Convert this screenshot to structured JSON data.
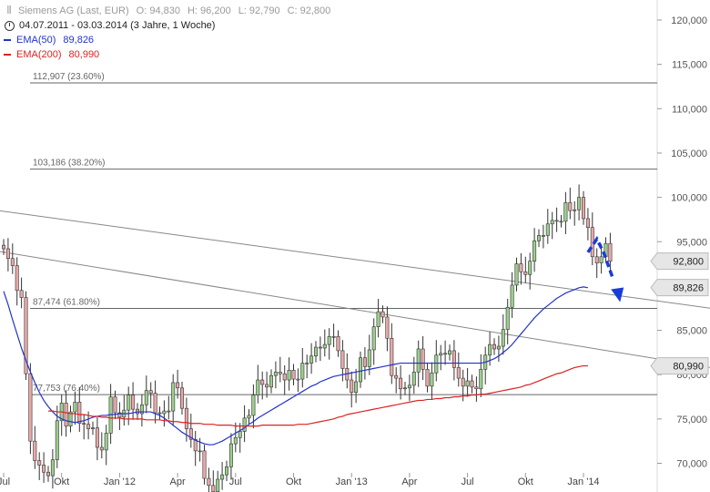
{
  "header": {
    "instrument": "Siemens AG (Last, EUR)",
    "open": "O: 94,830",
    "high": "H: 96,200",
    "low": "L: 92,790",
    "close": "C: 92,800",
    "period": "04.07.2011 - 03.03.2014 (3 Jahre, 1 Woche)"
  },
  "icons": {
    "instrument": "candlestick-icon",
    "period": "clock-icon"
  },
  "legend": [
    {
      "name": "EMA(50)",
      "value": "89,826",
      "color": "#2233cc"
    },
    {
      "name": "EMA(200)",
      "value": "80,990",
      "color": "#dd2222"
    }
  ],
  "chart_data": {
    "type": "candlestick",
    "ylim": [
      67.5,
      122.5
    ],
    "y_ticks": [
      70,
      75,
      80,
      85,
      90,
      95,
      100,
      105,
      110,
      115,
      120
    ],
    "y_tick_labels": [
      "70,000",
      "75,000",
      "80,000",
      "85,000",
      "90,000",
      "95,000",
      "100,000",
      "105,000",
      "110,000",
      "115,000",
      "120,000"
    ],
    "x_tick_labels": [
      "Jul",
      "Okt",
      "Jan '12",
      "Apr",
      "Jul",
      "Okt",
      "Jan '13",
      "Apr",
      "Jul",
      "Okt",
      "Jan '14"
    ],
    "x_tick_index": [
      0,
      13,
      26,
      39,
      52,
      65,
      78,
      91,
      104,
      117,
      130
    ],
    "fib_levels": [
      {
        "value": 112.907,
        "label": "112,907 (23.60%)"
      },
      {
        "value": 103.186,
        "label": "103,186 (38.20%)"
      },
      {
        "value": 87.474,
        "label": "87,474 (61.80%)"
      },
      {
        "value": 77.753,
        "label": "77,753 (76.40%)"
      }
    ],
    "trendlines": [
      {
        "from": [
          -1,
          98.5
        ],
        "to": [
          167,
          86.9
        ]
      },
      {
        "from": [
          -1,
          93.9
        ],
        "to": [
          167,
          80.1
        ]
      }
    ],
    "close": [
      94.2,
      93.1,
      92.3,
      89.5,
      88.7,
      80.1,
      72.5,
      70.3,
      69.8,
      69.0,
      68.6,
      70.4,
      74.8,
      76.8,
      74.2,
      75.8,
      76.9,
      74.5,
      74.4,
      73.9,
      74.0,
      71.8,
      71.5,
      73.4,
      77.5,
      75.7,
      75.2,
      76.0,
      77.7,
      76.1,
      75.6,
      76.6,
      78.2,
      77.9,
      75.7,
      75.6,
      75.9,
      75.9,
      79.1,
      78.5,
      76.2,
      73.9,
      72.7,
      71.4,
      71.4,
      68.3,
      67.5,
      66.8,
      68.2,
      68.7,
      69.6,
      72.2,
      72.9,
      73.6,
      75.1,
      75.4,
      77.7,
      79.4,
      78.9,
      78.6,
      79.9,
      80.3,
      80.1,
      79.4,
      80.5,
      79.5,
      79.5,
      81.3,
      81.3,
      82.1,
      83.1,
      83.0,
      83.4,
      84.3,
      84.3,
      82.7,
      80.7,
      79.4,
      78.0,
      79.2,
      81.9,
      80.9,
      82.8,
      85.4,
      87.1,
      86.5,
      84.1,
      79.9,
      79.6,
      78.4,
      78.5,
      78.8,
      80.3,
      82.9,
      80.6,
      78.7,
      80.2,
      82.2,
      82.4,
      82.3,
      82.7,
      80.8,
      79.6,
      78.7,
      79.3,
      78.6,
      78.4,
      80.6,
      82.2,
      83.4,
      82.9,
      83.2,
      85.1,
      87.6,
      90.1,
      92.5,
      91.6,
      91.3,
      92.8,
      95.1,
      95.7,
      95.7,
      97.0,
      97.4,
      97.3,
      97.3,
      99.4,
      98.5,
      98.6,
      100.0,
      97.6,
      96.6,
      93.3,
      92.6,
      93.3,
      94.8,
      92.8
    ],
    "ema50": [
      89.4,
      87.9,
      86.2,
      84.6,
      83.0,
      81.6,
      80.3,
      79.1,
      78.0,
      77.1,
      76.4,
      75.8,
      75.3,
      75.0,
      74.8,
      74.7,
      74.6,
      74.7,
      74.8,
      75.0,
      75.2,
      75.3,
      75.4,
      75.4,
      75.5,
      75.5,
      75.6,
      75.6,
      75.6,
      75.7,
      75.8,
      75.8,
      75.8,
      75.8,
      75.6,
      75.4,
      75.1,
      74.7,
      74.3,
      73.9,
      73.5,
      73.2,
      72.9,
      72.6,
      72.4,
      72.2,
      72.1,
      72.1,
      72.3,
      72.5,
      72.8,
      73.1,
      73.4,
      73.7,
      74.0,
      74.4,
      74.7,
      75.1,
      75.4,
      75.7,
      76.0,
      76.3,
      76.6,
      76.9,
      77.2,
      77.5,
      77.8,
      78.1,
      78.4,
      78.7,
      78.9,
      79.2,
      79.4,
      79.6,
      79.8,
      79.9,
      80.0,
      80.1,
      80.2,
      80.3,
      80.4,
      80.5,
      80.6,
      80.7,
      80.8,
      80.9,
      81.0,
      81.1,
      81.2,
      81.3,
      81.3,
      81.3,
      81.3,
      81.3,
      81.3,
      81.3,
      81.3,
      81.3,
      81.3,
      81.3,
      81.3,
      81.3,
      81.3,
      81.3,
      81.3,
      81.3,
      81.3,
      81.3,
      81.4,
      81.6,
      81.8,
      82.1,
      82.5,
      82.9,
      83.4,
      84.0,
      84.6,
      85.2,
      85.8,
      86.4,
      86.9,
      87.4,
      87.8,
      88.2,
      88.6,
      88.9,
      89.2,
      89.4,
      89.6,
      89.8,
      89.9,
      89.8
    ],
    "ema200": [
      75.9,
      75.9,
      75.8,
      75.8,
      75.7,
      75.6,
      75.6,
      75.5,
      75.5,
      75.4,
      75.3,
      75.3,
      75.2,
      75.2,
      75.1,
      75.1,
      75.1,
      75.0,
      75.0,
      75.0,
      75.0,
      75.0,
      74.9,
      74.9,
      74.9,
      74.9,
      74.8,
      74.8,
      74.7,
      74.7,
      74.6,
      74.6,
      74.5,
      74.5,
      74.5,
      74.4,
      74.4,
      74.4,
      74.3,
      74.3,
      74.3,
      74.3,
      74.2,
      74.2,
      74.2,
      74.2,
      74.2,
      74.2,
      74.3,
      74.3,
      74.3,
      74.3,
      74.3,
      74.3,
      74.3,
      74.3,
      74.4,
      74.4,
      74.4,
      74.5,
      74.6,
      74.7,
      74.8,
      74.9,
      75.0,
      75.2,
      75.3,
      75.5,
      75.6,
      75.7,
      75.8,
      75.9,
      76.0,
      76.1,
      76.2,
      76.3,
      76.4,
      76.5,
      76.6,
      76.7,
      76.8,
      76.9,
      77.0,
      77.1,
      77.1,
      77.2,
      77.2,
      77.3,
      77.3,
      77.4,
      77.4,
      77.5,
      77.5,
      77.6,
      77.6,
      77.7,
      77.7,
      77.8,
      77.8,
      77.9,
      78.0,
      78.1,
      78.2,
      78.3,
      78.4,
      78.5,
      78.6,
      78.8,
      78.9,
      79.1,
      79.3,
      79.5,
      79.7,
      79.9,
      80.1,
      80.2,
      80.4,
      80.6,
      80.8,
      80.9,
      81.0,
      80.99
    ],
    "ema200_start_index": 10,
    "last_price_label": "92,800",
    "ema50_label": "89,826",
    "ema200_label": "80,990",
    "forecast_arrow": {
      "points": [
        [
          131,
          93.8
        ],
        [
          133,
          95.3
        ],
        [
          134.5,
          93.8
        ],
        [
          136.5,
          91.0
        ]
      ],
      "tip": [
        137.8,
        88.6
      ]
    }
  }
}
